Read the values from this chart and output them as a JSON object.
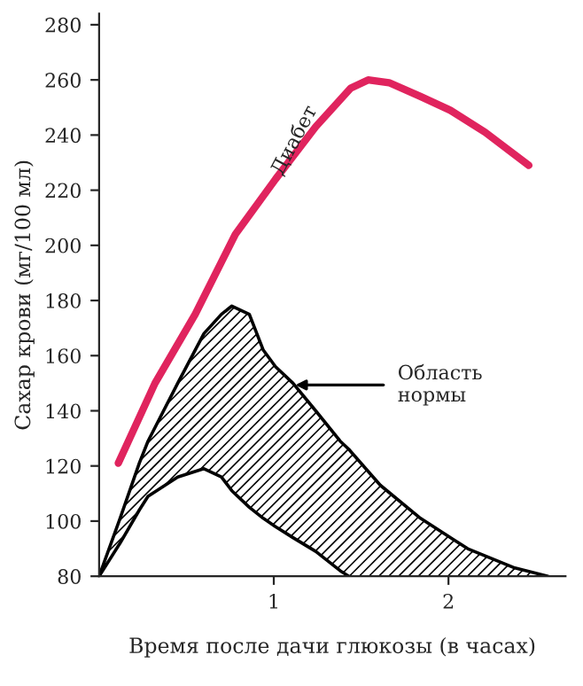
{
  "chart_data": {
    "type": "line",
    "xlabel": "Время после дачи глюкозы (в часах)",
    "ylabel": "Сахар крови (мг/100 мл)",
    "xlim": [
      0,
      2.67
    ],
    "ylim": [
      80,
      284
    ],
    "xticks": [
      1,
      2
    ],
    "yticks": [
      80,
      100,
      120,
      140,
      160,
      180,
      200,
      220,
      240,
      260,
      280
    ],
    "grid": false,
    "legend": false,
    "series": [
      {
        "color": "#e0245e",
        "line_style": "solid",
        "x": [
          0.11,
          0.32,
          0.55,
          0.78,
          1.01,
          1.24,
          1.44,
          1.54,
          1.66,
          1.84,
          2.01,
          2.21,
          2.46
        ],
        "values": [
          121,
          150,
          175,
          204,
          224,
          243,
          257,
          260,
          259,
          254,
          249,
          241,
          229
        ]
      },
      {
        "color": "#000000",
        "line_style": "solid",
        "upper": [
          80,
          101,
          121,
          129,
          150,
          168,
          175,
          178,
          175,
          162,
          156,
          150,
          140,
          129,
          126,
          113,
          101,
          90,
          83,
          80
        ],
        "x": [
          0,
          0.12,
          0.23,
          0.28,
          0.45,
          0.6,
          0.7,
          0.76,
          0.86,
          0.94,
          1.01,
          1.11,
          1.24,
          1.38,
          1.43,
          1.61,
          1.84,
          2.11,
          2.38,
          2.57
        ],
        "values": [
          80,
          101,
          121,
          129,
          150,
          168,
          175,
          178,
          175,
          162,
          156,
          150,
          140,
          129,
          126,
          113,
          101,
          90,
          83,
          80
        ],
        "lower": [
          80,
          92,
          104,
          109,
          116,
          119,
          116,
          111,
          105,
          101,
          98,
          94,
          89,
          82,
          80,
          80,
          80,
          80,
          80,
          80
        ]
      },
      {
        "type": "line",
        "color": "#000000",
        "line_style": "solid",
        "x": [
          0,
          0.12,
          0.23,
          0.28,
          0.45,
          0.6,
          0.7,
          0.76,
          0.86,
          0.94,
          1.01,
          1.11,
          1.24,
          1.38,
          1.43
        ],
        "values": [
          80,
          92,
          104,
          109,
          116,
          119,
          116,
          111,
          105,
          101,
          98,
          94,
          89,
          82,
          80
        ]
      }
    ],
    "annotations": [
      {
        "text": "Диабет",
        "x": 1.12,
        "y": 238
      },
      "Область\nнормы"
    ]
  }
}
